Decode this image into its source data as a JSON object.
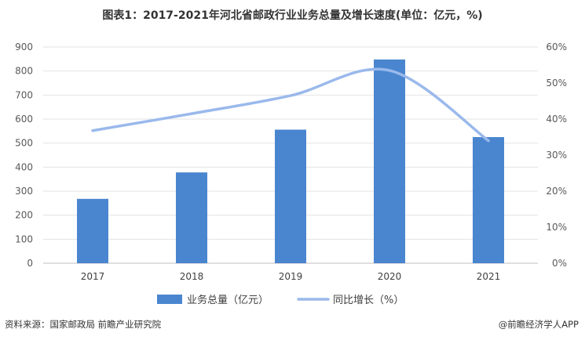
{
  "title": "图表1：2017-2021年河北省邮政行业业务总量及增长速度(单位：亿元，%)",
  "chart_data": {
    "type": "bar",
    "categories": [
      "2017",
      "2018",
      "2019",
      "2020",
      "2021"
    ],
    "series": [
      {
        "name": "业务总量（亿元）",
        "type": "bar",
        "axis": "left",
        "color": "#4a86cf",
        "values": [
          268,
          378,
          556,
          848,
          525
        ]
      },
      {
        "name": "同比增长（%）",
        "type": "line",
        "axis": "right",
        "color": "#9ab9ec",
        "values": [
          36.8,
          41.5,
          46.5,
          53.5,
          34.0
        ]
      }
    ],
    "y_left": {
      "min": 0,
      "max": 900,
      "step": 100,
      "ticks": [
        "0",
        "100",
        "200",
        "300",
        "400",
        "500",
        "600",
        "700",
        "800",
        "900"
      ]
    },
    "y_right": {
      "min": 0,
      "max": 60,
      "step": 10,
      "ticks": [
        "0%",
        "10%",
        "20%",
        "30%",
        "40%",
        "50%",
        "60%"
      ]
    },
    "grid": true,
    "legend_position": "bottom"
  },
  "footer": {
    "source": "资料来源：国家邮政局 前瞻产业研究院",
    "brand": "@前瞻经济学人APP"
  }
}
